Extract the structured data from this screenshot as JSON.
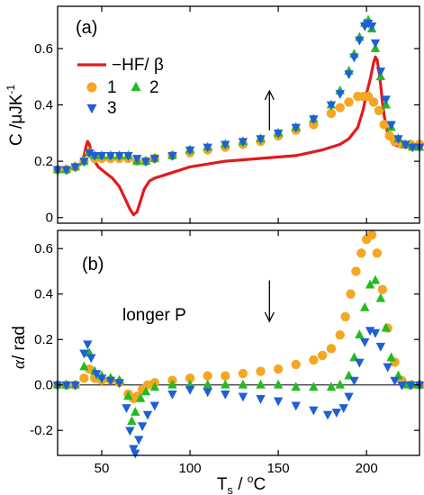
{
  "chart_data": [
    {
      "type": "scatter",
      "panel_label": "(a)",
      "ylabel": "C /μJK⁻¹",
      "ylabel_parts": {
        "base": "C /μJK",
        "sup": "-1"
      },
      "xlim": [
        25,
        230
      ],
      "ylim": [
        -0.02,
        0.75
      ],
      "xticks": [
        50,
        100,
        150,
        200
      ],
      "yticks": [
        0.0,
        0.2,
        0.4,
        0.6
      ],
      "ytick_labels": [
        "0",
        "0.2",
        "0.4",
        "0.6"
      ],
      "legend_placement": "top-left",
      "arrow": {
        "direction": "up",
        "x": 145,
        "y_from": 0.31,
        "y_to": 0.45
      },
      "series": [
        {
          "name": "−HF/ β",
          "style": "line",
          "color": "#e31a1c",
          "x": [
            25,
            30,
            35,
            38,
            40,
            41,
            42,
            43,
            45,
            48,
            52,
            56,
            60,
            63,
            66,
            68,
            70,
            72,
            74,
            77,
            80,
            85,
            90,
            100,
            120,
            140,
            160,
            175,
            185,
            190,
            195,
            198,
            200,
            202,
            203,
            204,
            205,
            206,
            207,
            208,
            209,
            210,
            212,
            215,
            220,
            230
          ],
          "y": [
            0.16,
            0.17,
            0.18,
            0.19,
            0.22,
            0.25,
            0.27,
            0.26,
            0.21,
            0.18,
            0.16,
            0.14,
            0.11,
            0.07,
            0.03,
            0.01,
            0.02,
            0.06,
            0.1,
            0.13,
            0.14,
            0.15,
            0.16,
            0.18,
            0.2,
            0.21,
            0.22,
            0.24,
            0.26,
            0.28,
            0.32,
            0.38,
            0.44,
            0.49,
            0.52,
            0.55,
            0.57,
            0.56,
            0.52,
            0.47,
            0.41,
            0.36,
            0.3,
            0.26,
            0.25,
            0.25
          ]
        },
        {
          "name": "1",
          "style": "marker",
          "marker": "circle",
          "color": "#f5a623",
          "x": [
            25,
            30,
            35,
            40,
            43,
            46,
            50,
            55,
            60,
            65,
            70,
            75,
            80,
            90,
            100,
            110,
            120,
            130,
            140,
            150,
            160,
            170,
            180,
            185,
            190,
            195,
            198,
            201,
            204,
            207,
            210,
            213,
            216,
            220,
            225,
            230
          ],
          "y": [
            0.17,
            0.17,
            0.18,
            0.2,
            0.23,
            0.21,
            0.21,
            0.21,
            0.21,
            0.21,
            0.2,
            0.2,
            0.21,
            0.22,
            0.23,
            0.24,
            0.25,
            0.26,
            0.27,
            0.29,
            0.31,
            0.33,
            0.37,
            0.39,
            0.41,
            0.43,
            0.43,
            0.43,
            0.41,
            0.38,
            0.33,
            0.29,
            0.27,
            0.26,
            0.26,
            0.26
          ]
        },
        {
          "name": "2",
          "style": "marker",
          "marker": "triangle-up",
          "color": "#22bb22",
          "x": [
            25,
            30,
            35,
            40,
            43,
            46,
            50,
            55,
            60,
            65,
            70,
            75,
            80,
            90,
            100,
            110,
            120,
            130,
            140,
            150,
            160,
            170,
            180,
            185,
            190,
            193,
            196,
            199,
            201,
            203,
            205,
            208,
            211,
            214,
            218,
            222,
            226,
            230
          ],
          "y": [
            0.17,
            0.17,
            0.18,
            0.2,
            0.23,
            0.22,
            0.22,
            0.22,
            0.22,
            0.22,
            0.2,
            0.2,
            0.21,
            0.22,
            0.24,
            0.25,
            0.26,
            0.27,
            0.28,
            0.3,
            0.32,
            0.35,
            0.4,
            0.45,
            0.52,
            0.58,
            0.64,
            0.69,
            0.7,
            0.67,
            0.6,
            0.5,
            0.4,
            0.32,
            0.28,
            0.26,
            0.25,
            0.25
          ]
        },
        {
          "name": "3",
          "style": "marker",
          "marker": "triangle-down",
          "color": "#1f5fd6",
          "x": [
            25,
            30,
            35,
            40,
            43,
            46,
            50,
            55,
            60,
            65,
            70,
            75,
            80,
            90,
            100,
            110,
            120,
            130,
            140,
            150,
            160,
            170,
            180,
            185,
            190,
            193,
            196,
            199,
            201,
            203,
            205,
            208,
            211,
            214,
            218,
            222,
            226,
            230
          ],
          "y": [
            0.17,
            0.17,
            0.18,
            0.2,
            0.23,
            0.22,
            0.22,
            0.22,
            0.22,
            0.22,
            0.21,
            0.2,
            0.21,
            0.22,
            0.24,
            0.25,
            0.26,
            0.27,
            0.28,
            0.3,
            0.32,
            0.35,
            0.4,
            0.44,
            0.51,
            0.57,
            0.63,
            0.68,
            0.69,
            0.68,
            0.62,
            0.52,
            0.42,
            0.33,
            0.28,
            0.26,
            0.25,
            0.25
          ]
        }
      ]
    },
    {
      "type": "scatter",
      "panel_label": "(b)",
      "ylabel": "α/ rad",
      "ylabel_parts": {
        "sym": "α",
        "rest": "/ rad"
      },
      "xlabel": "Ts / °C",
      "xlabel_parts": {
        "base": "T",
        "sub": "s",
        "mid": " / ",
        "sup": "o",
        "end": "C"
      },
      "xlim": [
        25,
        230
      ],
      "ylim": [
        -0.31,
        0.68
      ],
      "xticks": [
        50,
        100,
        150,
        200
      ],
      "yticks": [
        -0.2,
        0.0,
        0.2,
        0.4,
        0.6
      ],
      "ytick_labels": [
        "-0.2",
        "0.0",
        "0.2",
        "0.4",
        "0.6"
      ],
      "zero_line": true,
      "annotation": "longer P",
      "arrow": {
        "direction": "down",
        "x": 145,
        "y_from": 0.46,
        "y_to": 0.28
      },
      "series": [
        {
          "name": "1",
          "style": "marker",
          "marker": "circle",
          "color": "#f5a623",
          "x": [
            25,
            30,
            35,
            40,
            43,
            46,
            50,
            55,
            60,
            65,
            68,
            70,
            73,
            76,
            80,
            90,
            100,
            110,
            120,
            130,
            140,
            150,
            160,
            170,
            175,
            180,
            185,
            188,
            191,
            194,
            197,
            200,
            203,
            206,
            209,
            212,
            216,
            220,
            225,
            230
          ],
          "y": [
            0.0,
            0.0,
            0.0,
            0.03,
            0.07,
            0.03,
            0.02,
            0.02,
            0.01,
            -0.04,
            -0.06,
            -0.05,
            -0.02,
            0.0,
            0.01,
            0.02,
            0.03,
            0.04,
            0.04,
            0.05,
            0.06,
            0.07,
            0.09,
            0.11,
            0.13,
            0.16,
            0.22,
            0.3,
            0.4,
            0.5,
            0.58,
            0.64,
            0.66,
            0.58,
            0.42,
            0.25,
            0.1,
            0.02,
            0.0,
            0.0
          ]
        },
        {
          "name": "2",
          "style": "marker",
          "marker": "triangle-up",
          "color": "#22bb22",
          "x": [
            25,
            30,
            35,
            40,
            43,
            46,
            50,
            55,
            60,
            65,
            67,
            69,
            72,
            75,
            80,
            90,
            100,
            110,
            120,
            130,
            140,
            150,
            160,
            170,
            180,
            185,
            190,
            193,
            196,
            199,
            202,
            205,
            208,
            211,
            214,
            218,
            222,
            226,
            230
          ],
          "y": [
            0.0,
            0.0,
            0.0,
            0.08,
            0.14,
            0.06,
            0.04,
            0.03,
            0.02,
            -0.05,
            -0.16,
            -0.12,
            -0.06,
            -0.03,
            -0.01,
            0.0,
            0.0,
            0.0,
            0.0,
            0.0,
            0.0,
            0.0,
            -0.01,
            -0.01,
            -0.01,
            0.0,
            0.04,
            0.12,
            0.22,
            0.34,
            0.44,
            0.46,
            0.38,
            0.25,
            0.12,
            0.04,
            0.0,
            0.0,
            0.0
          ]
        },
        {
          "name": "3",
          "style": "marker",
          "marker": "triangle-down",
          "color": "#1f5fd6",
          "x": [
            25,
            30,
            35,
            40,
            42,
            44,
            47,
            50,
            55,
            60,
            64,
            66,
            68,
            69,
            71,
            73,
            76,
            80,
            90,
            100,
            110,
            120,
            130,
            140,
            150,
            160,
            170,
            178,
            183,
            187,
            190,
            193,
            196,
            199,
            202,
            205,
            208,
            212,
            216,
            220,
            225,
            230
          ],
          "y": [
            0.0,
            0.0,
            0.0,
            0.14,
            0.18,
            0.12,
            0.05,
            0.03,
            0.02,
            0.01,
            -0.1,
            -0.2,
            -0.28,
            -0.3,
            -0.24,
            -0.18,
            -0.13,
            -0.09,
            -0.04,
            -0.02,
            -0.03,
            -0.04,
            -0.05,
            -0.06,
            -0.07,
            -0.09,
            -0.11,
            -0.13,
            -0.12,
            -0.1,
            -0.05,
            0.02,
            0.1,
            0.19,
            0.24,
            0.23,
            0.17,
            0.08,
            0.02,
            0.0,
            0.0,
            0.0
          ]
        }
      ]
    }
  ]
}
